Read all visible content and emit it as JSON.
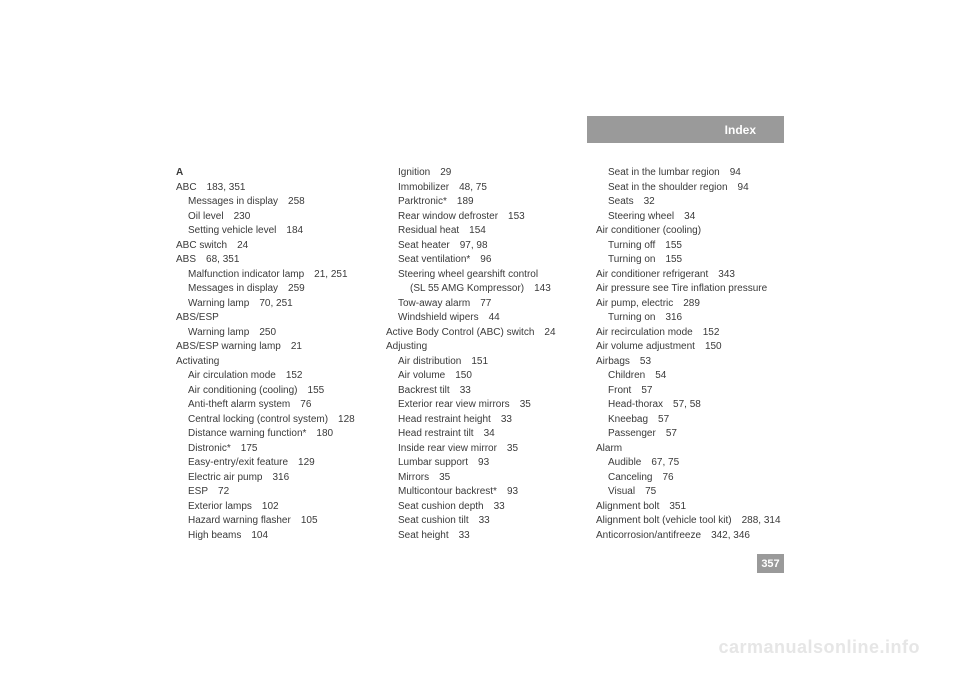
{
  "header": {
    "title": "Index"
  },
  "pageNumber": "357",
  "watermark": "carmanualsonline.info",
  "col1": {
    "sectionHead": "A",
    "lines": [
      {
        "text": "ABC",
        "pages": "183, 351",
        "indent": 0
      },
      {
        "text": "Messages in display",
        "pages": "258",
        "indent": 1
      },
      {
        "text": "Oil level",
        "pages": "230",
        "indent": 1
      },
      {
        "text": "Setting vehicle level",
        "pages": "184",
        "indent": 1
      },
      {
        "text": "ABC switch",
        "pages": "24",
        "indent": 0
      },
      {
        "text": "ABS",
        "pages": "68, 351",
        "indent": 0
      },
      {
        "text": "Malfunction indicator lamp",
        "pages": "21, 251",
        "indent": 1
      },
      {
        "text": "Messages in display",
        "pages": "259",
        "indent": 1
      },
      {
        "text": "Warning lamp",
        "pages": "70, 251",
        "indent": 1
      },
      {
        "text": "ABS/ESP",
        "pages": "",
        "indent": 0
      },
      {
        "text": "Warning lamp",
        "pages": "250",
        "indent": 1
      },
      {
        "text": "ABS/ESP warning lamp",
        "pages": "21",
        "indent": 0
      },
      {
        "text": "Activating",
        "pages": "",
        "indent": 0
      },
      {
        "text": "Air circulation mode",
        "pages": "152",
        "indent": 1
      },
      {
        "text": "Air conditioning (cooling)",
        "pages": "155",
        "indent": 1
      },
      {
        "text": "Anti-theft alarm system",
        "pages": "76",
        "indent": 1
      },
      {
        "text": "Central locking (control system)",
        "pages": "128",
        "indent": 1
      },
      {
        "text": "Distance warning function*",
        "pages": "180",
        "indent": 1
      },
      {
        "text": "Distronic*",
        "pages": "175",
        "indent": 1
      },
      {
        "text": "Easy-entry/exit feature",
        "pages": "129",
        "indent": 1
      },
      {
        "text": "Electric air pump",
        "pages": "316",
        "indent": 1
      },
      {
        "text": "ESP",
        "pages": "72",
        "indent": 1
      },
      {
        "text": "Exterior lamps",
        "pages": "102",
        "indent": 1
      },
      {
        "text": "Hazard warning flasher",
        "pages": "105",
        "indent": 1
      },
      {
        "text": "High beams",
        "pages": "104",
        "indent": 1
      }
    ]
  },
  "col2": {
    "lines": [
      {
        "text": "Ignition",
        "pages": "29",
        "indent": 1
      },
      {
        "text": "Immobilizer",
        "pages": "48, 75",
        "indent": 1
      },
      {
        "text": "Parktronic*",
        "pages": "189",
        "indent": 1
      },
      {
        "text": "Rear window defroster",
        "pages": "153",
        "indent": 1
      },
      {
        "text": "Residual heat",
        "pages": "154",
        "indent": 1
      },
      {
        "text": "Seat heater",
        "pages": "97, 98",
        "indent": 1
      },
      {
        "text": "Seat ventilation*",
        "pages": "96",
        "indent": 1
      },
      {
        "text": "Steering wheel gearshift control",
        "pages": "",
        "indent": 1
      },
      {
        "text": "(SL 55 AMG Kompressor)",
        "pages": "143",
        "indent": 2
      },
      {
        "text": "Tow-away alarm",
        "pages": "77",
        "indent": 1
      },
      {
        "text": "Windshield wipers",
        "pages": "44",
        "indent": 1
      },
      {
        "text": "Active Body Control (ABC) switch",
        "pages": "24",
        "indent": 0
      },
      {
        "text": "Adjusting",
        "pages": "",
        "indent": 0
      },
      {
        "text": "Air distribution",
        "pages": "151",
        "indent": 1
      },
      {
        "text": "Air volume",
        "pages": "150",
        "indent": 1
      },
      {
        "text": "Backrest tilt",
        "pages": "33",
        "indent": 1
      },
      {
        "text": "Exterior rear view mirrors",
        "pages": "35",
        "indent": 1
      },
      {
        "text": "Head restraint height",
        "pages": "33",
        "indent": 1
      },
      {
        "text": "Head restraint tilt",
        "pages": "34",
        "indent": 1
      },
      {
        "text": "Inside rear view mirror",
        "pages": "35",
        "indent": 1
      },
      {
        "text": "Lumbar support",
        "pages": "93",
        "indent": 1
      },
      {
        "text": "Mirrors",
        "pages": "35",
        "indent": 1
      },
      {
        "text": "Multicontour backrest*",
        "pages": "93",
        "indent": 1
      },
      {
        "text": "Seat cushion depth",
        "pages": "33",
        "indent": 1
      },
      {
        "text": "Seat cushion tilt",
        "pages": "33",
        "indent": 1
      },
      {
        "text": "Seat height",
        "pages": "33",
        "indent": 1
      }
    ]
  },
  "col3": {
    "lines": [
      {
        "text": "Seat in the lumbar region",
        "pages": "94",
        "indent": 1
      },
      {
        "text": "Seat in the shoulder region",
        "pages": "94",
        "indent": 1
      },
      {
        "text": "Seats",
        "pages": "32",
        "indent": 1
      },
      {
        "text": "Steering wheel",
        "pages": "34",
        "indent": 1
      },
      {
        "text": "Air conditioner (cooling)",
        "pages": "",
        "indent": 0
      },
      {
        "text": "Turning off",
        "pages": "155",
        "indent": 1
      },
      {
        "text": "Turning on",
        "pages": "155",
        "indent": 1
      },
      {
        "text": "Air conditioner refrigerant",
        "pages": "343",
        "indent": 0
      },
      {
        "text": "Air pressure see Tire inflation pressure",
        "pages": "",
        "indent": 0
      },
      {
        "text": "Air pump, electric",
        "pages": "289",
        "indent": 0
      },
      {
        "text": "Turning on",
        "pages": "316",
        "indent": 1
      },
      {
        "text": "Air recirculation mode",
        "pages": "152",
        "indent": 0
      },
      {
        "text": "Air volume adjustment",
        "pages": "150",
        "indent": 0
      },
      {
        "text": "Airbags",
        "pages": "53",
        "indent": 0
      },
      {
        "text": "Children",
        "pages": "54",
        "indent": 1
      },
      {
        "text": "Front",
        "pages": "57",
        "indent": 1
      },
      {
        "text": "Head-thorax",
        "pages": "57, 58",
        "indent": 1
      },
      {
        "text": "Kneebag",
        "pages": "57",
        "indent": 1
      },
      {
        "text": "Passenger",
        "pages": "57",
        "indent": 1
      },
      {
        "text": "Alarm",
        "pages": "",
        "indent": 0
      },
      {
        "text": "Audible",
        "pages": "67, 75",
        "indent": 1
      },
      {
        "text": "Canceling",
        "pages": "76",
        "indent": 1
      },
      {
        "text": "Visual",
        "pages": "75",
        "indent": 1
      },
      {
        "text": "Alignment bolt",
        "pages": "351",
        "indent": 0
      },
      {
        "text": "Alignment bolt (vehicle tool kit)",
        "pages": "288, 314",
        "indent": 0
      },
      {
        "text": "Anticorrosion/antifreeze",
        "pages": "342, 346",
        "indent": 0
      }
    ]
  }
}
